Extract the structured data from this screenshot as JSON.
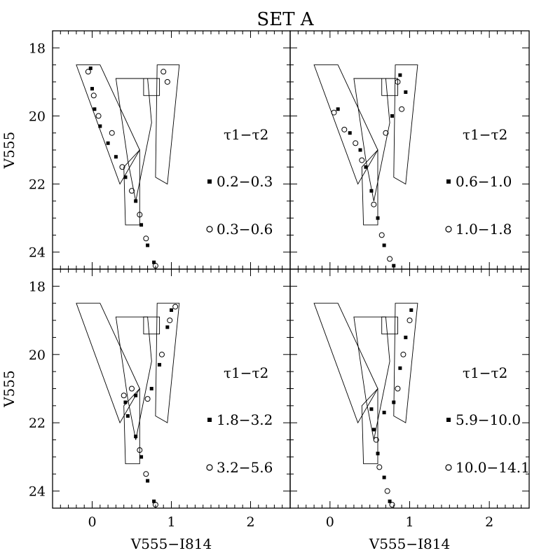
{
  "title": "SET A",
  "chart_data": [
    {
      "type": "scatter",
      "title": "SET A",
      "xlabel": "V555−I814",
      "ylabel": "V555",
      "xlim": [
        -0.5,
        2.5
      ],
      "ylim": [
        24.5,
        17.5
      ],
      "x_ticks": [
        "0",
        "1",
        "2"
      ],
      "y_ticks": [
        "18",
        "20",
        "22",
        "24"
      ],
      "legend_title": "τ1−τ2",
      "series": [
        {
          "name": "0.2−0.3",
          "marker": "filled-square",
          "points": [
            [
              -0.02,
              18.6
            ],
            [
              0,
              19.2
            ],
            [
              0.03,
              19.8
            ],
            [
              0.1,
              20.3
            ],
            [
              0.2,
              20.8
            ],
            [
              0.3,
              21.2
            ],
            [
              0.42,
              21.8
            ],
            [
              0.55,
              22.5
            ],
            [
              0.62,
              23.2
            ],
            [
              0.7,
              23.8
            ],
            [
              0.78,
              24.3
            ]
          ]
        },
        {
          "name": "0.3−0.6",
          "marker": "open-circle",
          "points": [
            [
              -0.05,
              18.7
            ],
            [
              0.02,
              19.4
            ],
            [
              0.08,
              20.0
            ],
            [
              0.25,
              20.5
            ],
            [
              0.38,
              21.5
            ],
            [
              0.5,
              22.2
            ],
            [
              0.6,
              22.9
            ],
            [
              0.68,
              23.6
            ],
            [
              0.8,
              24.4
            ],
            [
              0.9,
              18.7
            ],
            [
              0.95,
              19.0
            ]
          ]
        },
        {
          "name": "0.6−1.0",
          "marker": "filled-square",
          "points": [
            [
              0.1,
              19.8
            ],
            [
              0.25,
              20.5
            ],
            [
              0.38,
              21.0
            ],
            [
              0.45,
              21.5
            ],
            [
              0.52,
              22.2
            ],
            [
              0.6,
              23.0
            ],
            [
              0.68,
              23.8
            ],
            [
              0.8,
              24.4
            ],
            [
              0.88,
              18.8
            ],
            [
              0.95,
              19.3
            ],
            [
              0.78,
              20.0
            ]
          ]
        },
        {
          "name": "1.0−1.8",
          "marker": "open-circle",
          "points": [
            [
              0.05,
              19.9
            ],
            [
              0.18,
              20.4
            ],
            [
              0.32,
              20.8
            ],
            [
              0.4,
              21.3
            ],
            [
              0.55,
              22.6
            ],
            [
              0.65,
              23.5
            ],
            [
              0.75,
              24.2
            ],
            [
              0.85,
              19.0
            ],
            [
              0.9,
              19.8
            ],
            [
              0.7,
              20.5
            ]
          ]
        },
        {
          "name": "1.8−3.2",
          "marker": "filled-square",
          "points": [
            [
              0.42,
              21.4
            ],
            [
              0.45,
              21.8
            ],
            [
              0.55,
              22.4
            ],
            [
              0.62,
              23.0
            ],
            [
              0.7,
              23.7
            ],
            [
              0.78,
              24.3
            ],
            [
              0.55,
              21.2
            ],
            [
              0.75,
              21.0
            ],
            [
              0.85,
              20.3
            ],
            [
              0.95,
              19.2
            ],
            [
              1.0,
              18.7
            ]
          ]
        },
        {
          "name": "3.2−5.6",
          "marker": "open-circle",
          "points": [
            [
              0.4,
              21.2
            ],
            [
              0.5,
              21.0
            ],
            [
              0.6,
              22.8
            ],
            [
              0.68,
              23.5
            ],
            [
              0.8,
              24.4
            ],
            [
              0.7,
              21.3
            ],
            [
              0.88,
              20.0
            ],
            [
              0.98,
              19.0
            ],
            [
              1.05,
              18.6
            ]
          ]
        },
        {
          "name": "5.9−10.0",
          "marker": "filled-square",
          "points": [
            [
              0.52,
              21.6
            ],
            [
              0.55,
              22.2
            ],
            [
              0.6,
              22.9
            ],
            [
              0.68,
              23.6
            ],
            [
              0.75,
              24.3
            ],
            [
              0.68,
              21.7
            ],
            [
              0.8,
              21.4
            ],
            [
              0.88,
              20.4
            ],
            [
              0.95,
              19.5
            ],
            [
              1.02,
              18.7
            ]
          ]
        },
        {
          "name": "10.0−14.1",
          "marker": "open-circle",
          "points": [
            [
              0.58,
              22.5
            ],
            [
              0.62,
              23.3
            ],
            [
              0.72,
              24.0
            ],
            [
              0.78,
              24.4
            ],
            [
              0.85,
              21.0
            ],
            [
              0.92,
              20.0
            ],
            [
              1.0,
              19.0
            ]
          ]
        }
      ],
      "panels": [
        {
          "position": "top-left",
          "series": [
            "0.2−0.3",
            "0.3−0.6"
          ],
          "has_xlabel": false,
          "has_ylabel": true
        },
        {
          "position": "top-right",
          "series": [
            "0.6−1.0",
            "1.0−1.8"
          ],
          "has_xlabel": false,
          "has_ylabel": false
        },
        {
          "position": "bottom-left",
          "series": [
            "1.8−3.2",
            "3.2−5.6"
          ],
          "has_xlabel": true,
          "has_ylabel": true
        },
        {
          "position": "bottom-right",
          "series": [
            "5.9−10.0",
            "10.0−14.1"
          ],
          "has_xlabel": true,
          "has_ylabel": false
        }
      ],
      "legend_placement": "right",
      "grid": false
    }
  ],
  "colors": {
    "ink": "#000000",
    "background": "#ffffff"
  }
}
